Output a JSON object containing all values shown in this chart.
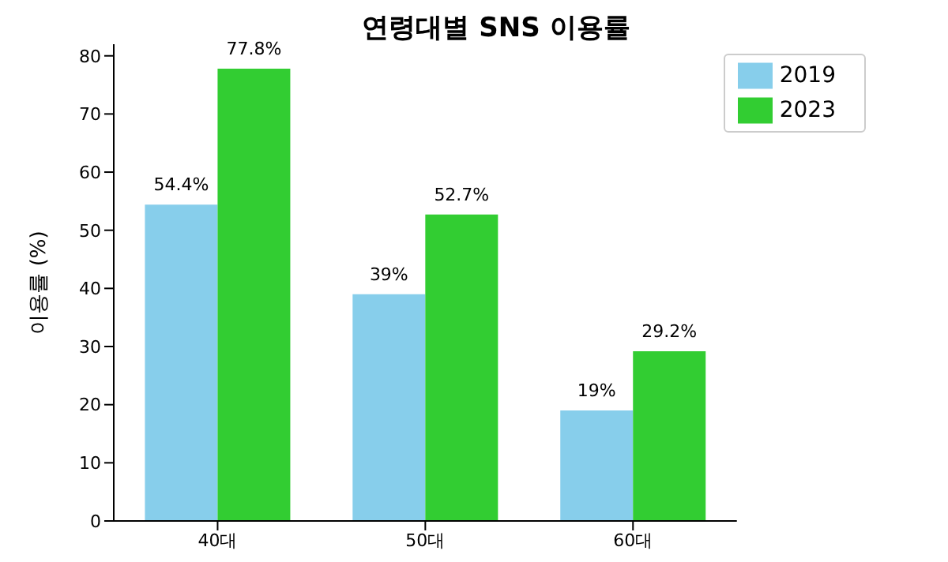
{
  "chart_data": {
    "type": "bar",
    "title": "연령대별 SNS 이용률",
    "ylabel": "이용률 (%)",
    "categories": [
      "40대",
      "50대",
      "60대"
    ],
    "series": [
      {
        "name": "2019",
        "color": "#87ceeb",
        "values": [
          54.4,
          39,
          19
        ],
        "value_labels": [
          "54.4%",
          "39%",
          "19%"
        ]
      },
      {
        "name": "2023",
        "color": "#32cd32",
        "values": [
          77.8,
          52.7,
          29.2
        ],
        "value_labels": [
          "77.8%",
          "52.7%",
          "29.2%"
        ]
      }
    ],
    "ylim": [
      0,
      82
    ],
    "yticks": [
      0,
      10,
      20,
      30,
      40,
      50,
      60,
      70,
      80
    ],
    "grid": false,
    "legend": "top right"
  }
}
